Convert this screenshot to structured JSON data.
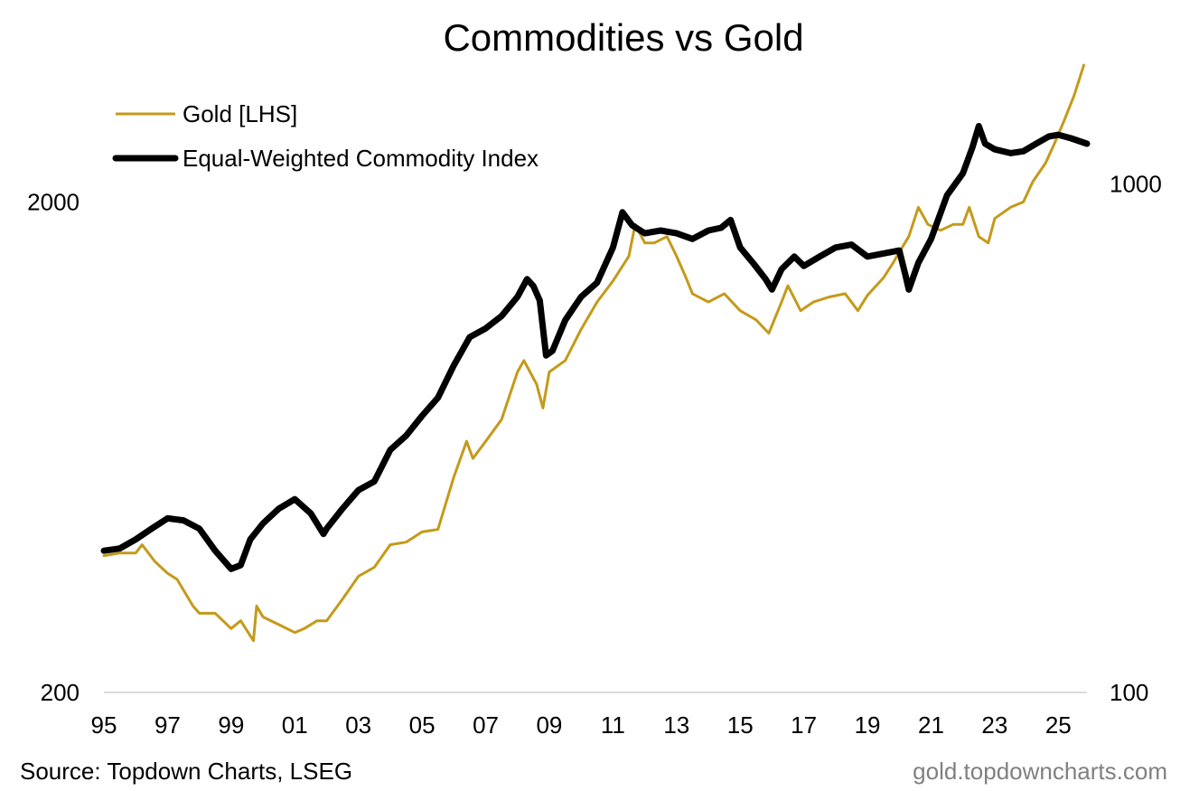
{
  "chart_data": {
    "type": "line",
    "title": "Commodities vs Gold",
    "source": "Source: Topdown Charts, LSEG",
    "watermark": "gold.topdowncharts.com",
    "x_ticks": [
      "95",
      "97",
      "99",
      "01",
      "03",
      "05",
      "07",
      "09",
      "11",
      "13",
      "15",
      "17",
      "19",
      "21",
      "23",
      "25"
    ],
    "x_tick_years": [
      1995,
      1997,
      1999,
      2001,
      2003,
      2005,
      2007,
      2009,
      2011,
      2013,
      2015,
      2017,
      2019,
      2021,
      2023,
      2025
    ],
    "xlim": [
      1995,
      2025.9
    ],
    "y_left": {
      "scale": "log",
      "lim": [
        200,
        4000
      ],
      "ticks": [
        200,
        2000
      ],
      "tick_labels": [
        "200",
        "2000"
      ]
    },
    "y_right": {
      "scale": "log",
      "lim": [
        100,
        1800
      ],
      "ticks": [
        100,
        1000
      ],
      "tick_labels": [
        "100",
        "1000"
      ]
    },
    "legend_placement": "top-left",
    "grid": false,
    "series": [
      {
        "name": "Gold [LHS]",
        "axis": "left",
        "color": "#c49a1a",
        "x": [
          1995.0,
          1995.5,
          1996.0,
          1996.2,
          1996.6,
          1997.0,
          1997.3,
          1997.8,
          1998.0,
          1998.5,
          1999.0,
          1999.3,
          1999.7,
          1999.8,
          2000.0,
          2000.5,
          2001.0,
          2001.3,
          2001.7,
          2002.0,
          2002.5,
          2003.0,
          2003.5,
          2004.0,
          2004.5,
          2005.0,
          2005.5,
          2006.0,
          2006.4,
          2006.6,
          2007.0,
          2007.5,
          2008.0,
          2008.2,
          2008.6,
          2008.8,
          2009.0,
          2009.5,
          2010.0,
          2010.5,
          2011.0,
          2011.5,
          2011.7,
          2012.0,
          2012.3,
          2012.7,
          2013.0,
          2013.3,
          2013.5,
          2014.0,
          2014.5,
          2015.0,
          2015.5,
          2015.9,
          2016.3,
          2016.5,
          2016.9,
          2017.3,
          2017.8,
          2018.3,
          2018.7,
          2019.0,
          2019.5,
          2019.8,
          2020.0,
          2020.3,
          2020.6,
          2020.9,
          2021.3,
          2021.7,
          2022.0,
          2022.2,
          2022.5,
          2022.8,
          2023.0,
          2023.5,
          2023.9,
          2024.2,
          2024.6,
          2024.9,
          2025.2,
          2025.5,
          2025.8
        ],
        "y": [
          380,
          385,
          385,
          400,
          370,
          350,
          340,
          300,
          290,
          290,
          270,
          280,
          255,
          300,
          285,
          275,
          265,
          270,
          280,
          280,
          310,
          345,
          360,
          400,
          405,
          425,
          430,
          550,
          650,
          600,
          650,
          720,
          900,
          950,
          850,
          760,
          900,
          950,
          1100,
          1250,
          1380,
          1550,
          1800,
          1650,
          1650,
          1700,
          1550,
          1400,
          1300,
          1250,
          1300,
          1200,
          1150,
          1080,
          1250,
          1350,
          1200,
          1250,
          1280,
          1300,
          1200,
          1290,
          1400,
          1500,
          1580,
          1700,
          1950,
          1800,
          1750,
          1800,
          1800,
          1950,
          1700,
          1650,
          1850,
          1950,
          2000,
          2200,
          2400,
          2650,
          2950,
          3300,
          3800
        ]
      },
      {
        "name": "Equal-Weighted Commodity Index",
        "axis": "right",
        "color": "#000000",
        "x": [
          1995.0,
          1995.5,
          1996.0,
          1996.5,
          1997.0,
          1997.5,
          1998.0,
          1998.5,
          1999.0,
          1999.3,
          1999.6,
          2000.0,
          2000.5,
          2001.0,
          2001.5,
          2001.9,
          2002.0,
          2002.5,
          2003.0,
          2003.5,
          2004.0,
          2004.5,
          2005.0,
          2005.5,
          2006.0,
          2006.5,
          2007.0,
          2007.5,
          2008.0,
          2008.3,
          2008.5,
          2008.7,
          2008.9,
          2009.1,
          2009.5,
          2010.0,
          2010.5,
          2011.0,
          2011.3,
          2011.6,
          2012.0,
          2012.5,
          2013.0,
          2013.5,
          2014.0,
          2014.4,
          2014.7,
          2015.0,
          2015.4,
          2015.8,
          2016.0,
          2016.3,
          2016.7,
          2017.0,
          2017.5,
          2018.0,
          2018.5,
          2019.0,
          2019.5,
          2020.0,
          2020.2,
          2020.3,
          2020.6,
          2021.0,
          2021.5,
          2022.0,
          2022.3,
          2022.5,
          2022.7,
          2023.0,
          2023.5,
          2023.9,
          2024.3,
          2024.7,
          2025.0,
          2025.4,
          2025.9
        ],
        "y": [
          190,
          192,
          200,
          210,
          220,
          218,
          210,
          190,
          175,
          178,
          200,
          215,
          230,
          240,
          225,
          205,
          210,
          230,
          250,
          260,
          300,
          320,
          350,
          380,
          440,
          500,
          520,
          550,
          600,
          650,
          630,
          590,
          460,
          470,
          540,
          600,
          640,
          750,
          880,
          830,
          800,
          810,
          800,
          780,
          810,
          820,
          850,
          750,
          700,
          650,
          620,
          680,
          720,
          690,
          720,
          750,
          760,
          720,
          730,
          740,
          660,
          620,
          700,
          780,
          950,
          1050,
          1180,
          1300,
          1200,
          1170,
          1150,
          1160,
          1200,
          1240,
          1250,
          1230,
          1200
        ]
      }
    ]
  }
}
